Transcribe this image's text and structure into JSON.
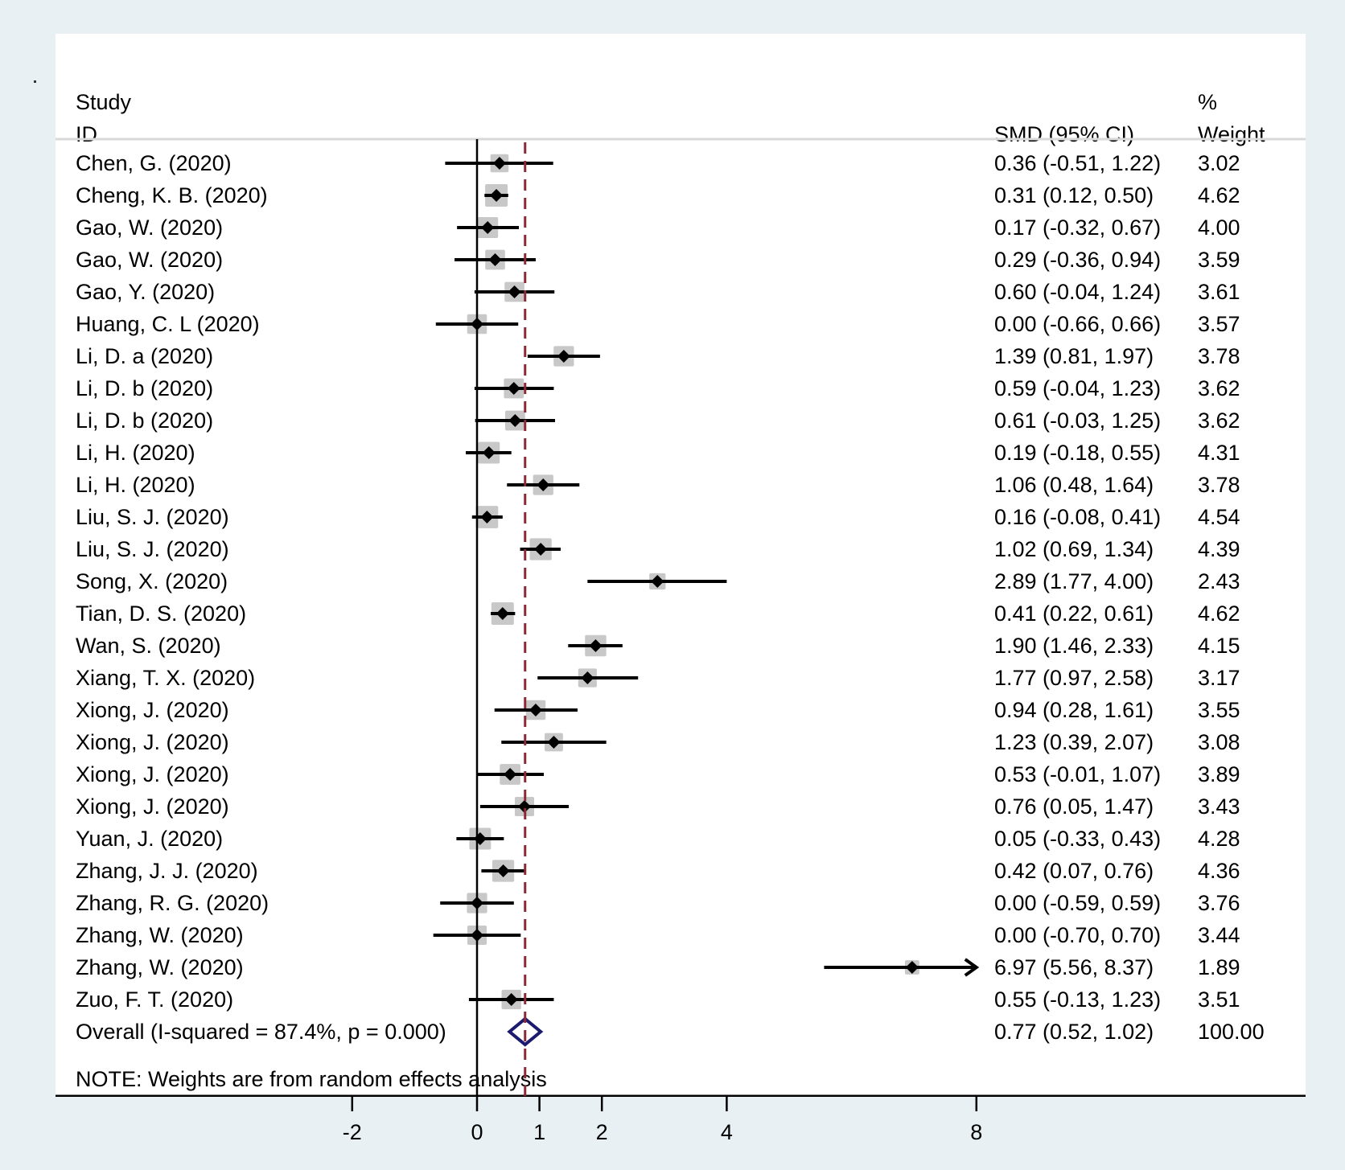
{
  "chart_data": {
    "type": "forest",
    "header": {
      "study_line1": "Study",
      "study_line2": "ID",
      "effect_label": "SMD (95% CI)",
      "weight_line1": "%",
      "weight_line2": "Weight"
    },
    "xaxis": {
      "ticks": [
        -2,
        0,
        1,
        2,
        4,
        8
      ],
      "tick_labels": [
        "-2",
        "0",
        "1",
        "2",
        "4",
        "8"
      ],
      "range": [
        -2,
        8
      ],
      "null_line": 0
    },
    "studies": [
      {
        "id": "Chen, G. (2020)",
        "smd": 0.36,
        "lower": -0.51,
        "upper": 1.22,
        "ci_text": "0.36 (-0.51, 1.22)",
        "weight": 3.02,
        "weight_text": "3.02"
      },
      {
        "id": "Cheng, K. B. (2020)",
        "smd": 0.31,
        "lower": 0.12,
        "upper": 0.5,
        "ci_text": "0.31 (0.12, 0.50)",
        "weight": 4.62,
        "weight_text": "4.62"
      },
      {
        "id": "Gao, W. (2020)",
        "smd": 0.17,
        "lower": -0.32,
        "upper": 0.67,
        "ci_text": "0.17 (-0.32, 0.67)",
        "weight": 4.0,
        "weight_text": "4.00"
      },
      {
        "id": "Gao, W. (2020)",
        "smd": 0.29,
        "lower": -0.36,
        "upper": 0.94,
        "ci_text": "0.29 (-0.36, 0.94)",
        "weight": 3.59,
        "weight_text": "3.59"
      },
      {
        "id": "Gao, Y. (2020)",
        "smd": 0.6,
        "lower": -0.04,
        "upper": 1.24,
        "ci_text": "0.60 (-0.04, 1.24)",
        "weight": 3.61,
        "weight_text": "3.61"
      },
      {
        "id": "Huang, C. L (2020)",
        "smd": 0.0,
        "lower": -0.66,
        "upper": 0.66,
        "ci_text": "0.00 (-0.66, 0.66)",
        "weight": 3.57,
        "weight_text": "3.57"
      },
      {
        "id": "Li, D. a (2020)",
        "smd": 1.39,
        "lower": 0.81,
        "upper": 1.97,
        "ci_text": "1.39 (0.81, 1.97)",
        "weight": 3.78,
        "weight_text": "3.78"
      },
      {
        "id": "Li, D. b (2020)",
        "smd": 0.59,
        "lower": -0.04,
        "upper": 1.23,
        "ci_text": "0.59 (-0.04, 1.23)",
        "weight": 3.62,
        "weight_text": "3.62"
      },
      {
        "id": "Li, D. b (2020)",
        "smd": 0.61,
        "lower": -0.03,
        "upper": 1.25,
        "ci_text": "0.61 (-0.03, 1.25)",
        "weight": 3.62,
        "weight_text": "3.62"
      },
      {
        "id": "Li, H. (2020)",
        "smd": 0.19,
        "lower": -0.18,
        "upper": 0.55,
        "ci_text": "0.19 (-0.18, 0.55)",
        "weight": 4.31,
        "weight_text": "4.31"
      },
      {
        "id": "Li, H. (2020)",
        "smd": 1.06,
        "lower": 0.48,
        "upper": 1.64,
        "ci_text": "1.06 (0.48, 1.64)",
        "weight": 3.78,
        "weight_text": "3.78"
      },
      {
        "id": "Liu, S. J. (2020)",
        "smd": 0.16,
        "lower": -0.08,
        "upper": 0.41,
        "ci_text": "0.16 (-0.08, 0.41)",
        "weight": 4.54,
        "weight_text": "4.54"
      },
      {
        "id": "Liu, S. J. (2020)",
        "smd": 1.02,
        "lower": 0.69,
        "upper": 1.34,
        "ci_text": "1.02 (0.69, 1.34)",
        "weight": 4.39,
        "weight_text": "4.39"
      },
      {
        "id": "Song, X. (2020)",
        "smd": 2.89,
        "lower": 1.77,
        "upper": 4.0,
        "ci_text": "2.89 (1.77, 4.00)",
        "weight": 2.43,
        "weight_text": "2.43"
      },
      {
        "id": "Tian, D. S. (2020)",
        "smd": 0.41,
        "lower": 0.22,
        "upper": 0.61,
        "ci_text": "0.41 (0.22, 0.61)",
        "weight": 4.62,
        "weight_text": "4.62"
      },
      {
        "id": "Wan, S. (2020)",
        "smd": 1.9,
        "lower": 1.46,
        "upper": 2.33,
        "ci_text": "1.90 (1.46, 2.33)",
        "weight": 4.15,
        "weight_text": "4.15"
      },
      {
        "id": "Xiang, T. X. (2020)",
        "smd": 1.77,
        "lower": 0.97,
        "upper": 2.58,
        "ci_text": "1.77 (0.97, 2.58)",
        "weight": 3.17,
        "weight_text": "3.17"
      },
      {
        "id": "Xiong, J. (2020)",
        "smd": 0.94,
        "lower": 0.28,
        "upper": 1.61,
        "ci_text": "0.94 (0.28, 1.61)",
        "weight": 3.55,
        "weight_text": "3.55"
      },
      {
        "id": "Xiong, J. (2020)",
        "smd": 1.23,
        "lower": 0.39,
        "upper": 2.07,
        "ci_text": "1.23 (0.39, 2.07)",
        "weight": 3.08,
        "weight_text": "3.08"
      },
      {
        "id": "Xiong, J. (2020)",
        "smd": 0.53,
        "lower": -0.01,
        "upper": 1.07,
        "ci_text": "0.53 (-0.01, 1.07)",
        "weight": 3.89,
        "weight_text": "3.89"
      },
      {
        "id": "Xiong, J. (2020)",
        "smd": 0.76,
        "lower": 0.05,
        "upper": 1.47,
        "ci_text": "0.76 (0.05, 1.47)",
        "weight": 3.43,
        "weight_text": "3.43"
      },
      {
        "id": "Yuan, J. (2020)",
        "smd": 0.05,
        "lower": -0.33,
        "upper": 0.43,
        "ci_text": "0.05 (-0.33, 0.43)",
        "weight": 4.28,
        "weight_text": "4.28"
      },
      {
        "id": "Zhang, J. J. (2020)",
        "smd": 0.42,
        "lower": 0.07,
        "upper": 0.76,
        "ci_text": "0.42 (0.07, 0.76)",
        "weight": 4.36,
        "weight_text": "4.36"
      },
      {
        "id": "Zhang, R. G. (2020)",
        "smd": 0.0,
        "lower": -0.59,
        "upper": 0.59,
        "ci_text": "0.00 (-0.59, 0.59)",
        "weight": 3.76,
        "weight_text": "3.76"
      },
      {
        "id": "Zhang, W. (2020)",
        "smd": 0.0,
        "lower": -0.7,
        "upper": 0.7,
        "ci_text": "0.00 (-0.70, 0.70)",
        "weight": 3.44,
        "weight_text": "3.44"
      },
      {
        "id": "Zhang, W. (2020)",
        "smd": 6.97,
        "lower": 5.56,
        "upper": 8.37,
        "ci_text": "6.97 (5.56, 8.37)",
        "weight": 1.89,
        "weight_text": "1.89"
      },
      {
        "id": "Zuo, F. T. (2020)",
        "smd": 0.55,
        "lower": -0.13,
        "upper": 1.23,
        "ci_text": "0.55 (-0.13, 1.23)",
        "weight": 3.51,
        "weight_text": "3.51"
      }
    ],
    "overall": {
      "label": "Overall  (I-squared = 87.4%, p = 0.000)",
      "smd": 0.77,
      "lower": 0.52,
      "upper": 1.02,
      "ci_text": "0.77 (0.52, 1.02)",
      "weight_text": "100.00",
      "i_squared_percent": 87.4,
      "p_value": "0.000"
    },
    "note": "NOTE: Weights are from random effects analysis",
    "colors": {
      "background": "#e8f0f3",
      "panel": "#ffffff",
      "marker": "#000000",
      "weight_box": "#c8c8c8",
      "overall_diamond": "#1a1a6e",
      "overall_line": "#8b2a35",
      "divider": "#d9d9d9"
    }
  }
}
